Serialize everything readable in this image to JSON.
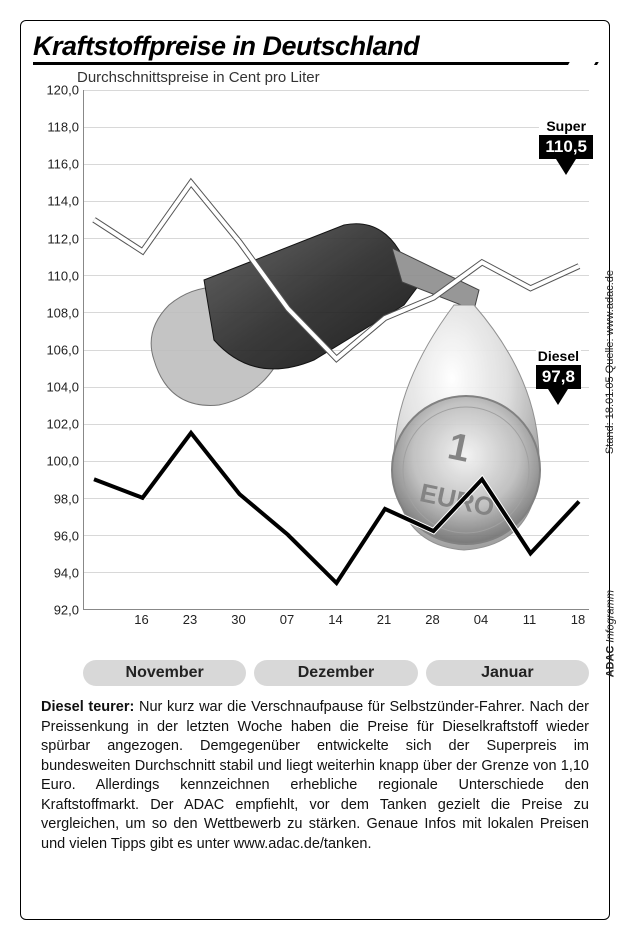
{
  "title": "Kraftstoffpreise in Deutschland",
  "subtitle": "Durchschnittspreise in Cent pro Liter",
  "source_line": "Stand: 18.01.05 Quelle: www.adac.de",
  "credit_brand": "ADAC",
  "credit_rest": " Infogramm",
  "chart": {
    "type": "line",
    "ylim": [
      92.0,
      120.0
    ],
    "ytick_step": 2.0,
    "y_ticks": [
      "92,0",
      "94,0",
      "96,0",
      "98,0",
      "100,0",
      "102,0",
      "104,0",
      "106,0",
      "108,0",
      "110,0",
      "112,0",
      "114,0",
      "116,0",
      "118,0",
      "120,0"
    ],
    "x_ticks": [
      "16",
      "23",
      "30",
      "07",
      "14",
      "21",
      "28",
      "04",
      "11",
      "18"
    ],
    "months": [
      "November",
      "Dezember",
      "Januar"
    ],
    "grid_color": "#d8d8d8",
    "background_color": "#ffffff",
    "axis_color": "#888888",
    "series": {
      "super": {
        "label": "Super",
        "final_label": "110,5",
        "color_stroke": "#ffffff",
        "color_outline": "#555555",
        "stroke_width": 4,
        "outline_width": 6,
        "values": [
          113.0,
          111.3,
          115.0,
          111.8,
          108.2,
          105.5,
          107.7,
          108.8,
          110.7,
          109.3,
          110.5
        ]
      },
      "diesel": {
        "label": "Diesel",
        "final_label": "97,8",
        "color_stroke": "#000000",
        "color_outline": "#ffffff",
        "stroke_width": 4,
        "outline_width": 6,
        "values": [
          99.0,
          98.0,
          101.5,
          98.2,
          96.0,
          93.4,
          97.4,
          96.2,
          99.0,
          95.0,
          97.8
        ]
      }
    }
  },
  "caption_lead": "Diesel teurer:",
  "caption_body": " Nur kurz war die Verschnaufpause für Selbstzünder-Fahrer. Nach der Preissenkung in der letzten Woche haben die Preise für Dieselkraftstoff wieder spürbar angezogen. Demgegenüber entwickelte sich der Superpreis im bundesweiten Durchschnitt stabil und liegt weiterhin knapp über der Grenze von 1,10 Euro. Allerdings kennzeichnen erhebliche regionale Unterschiede den Kraftstoffmarkt. Der ADAC empfiehlt, vor dem Tanken gezielt die Preise zu vergleichen, um so den Wettbewerb zu stärken. Genaue Infos mit lokalen Preisen und vielen Tipps gibt es unter www.adac.de/tanken."
}
